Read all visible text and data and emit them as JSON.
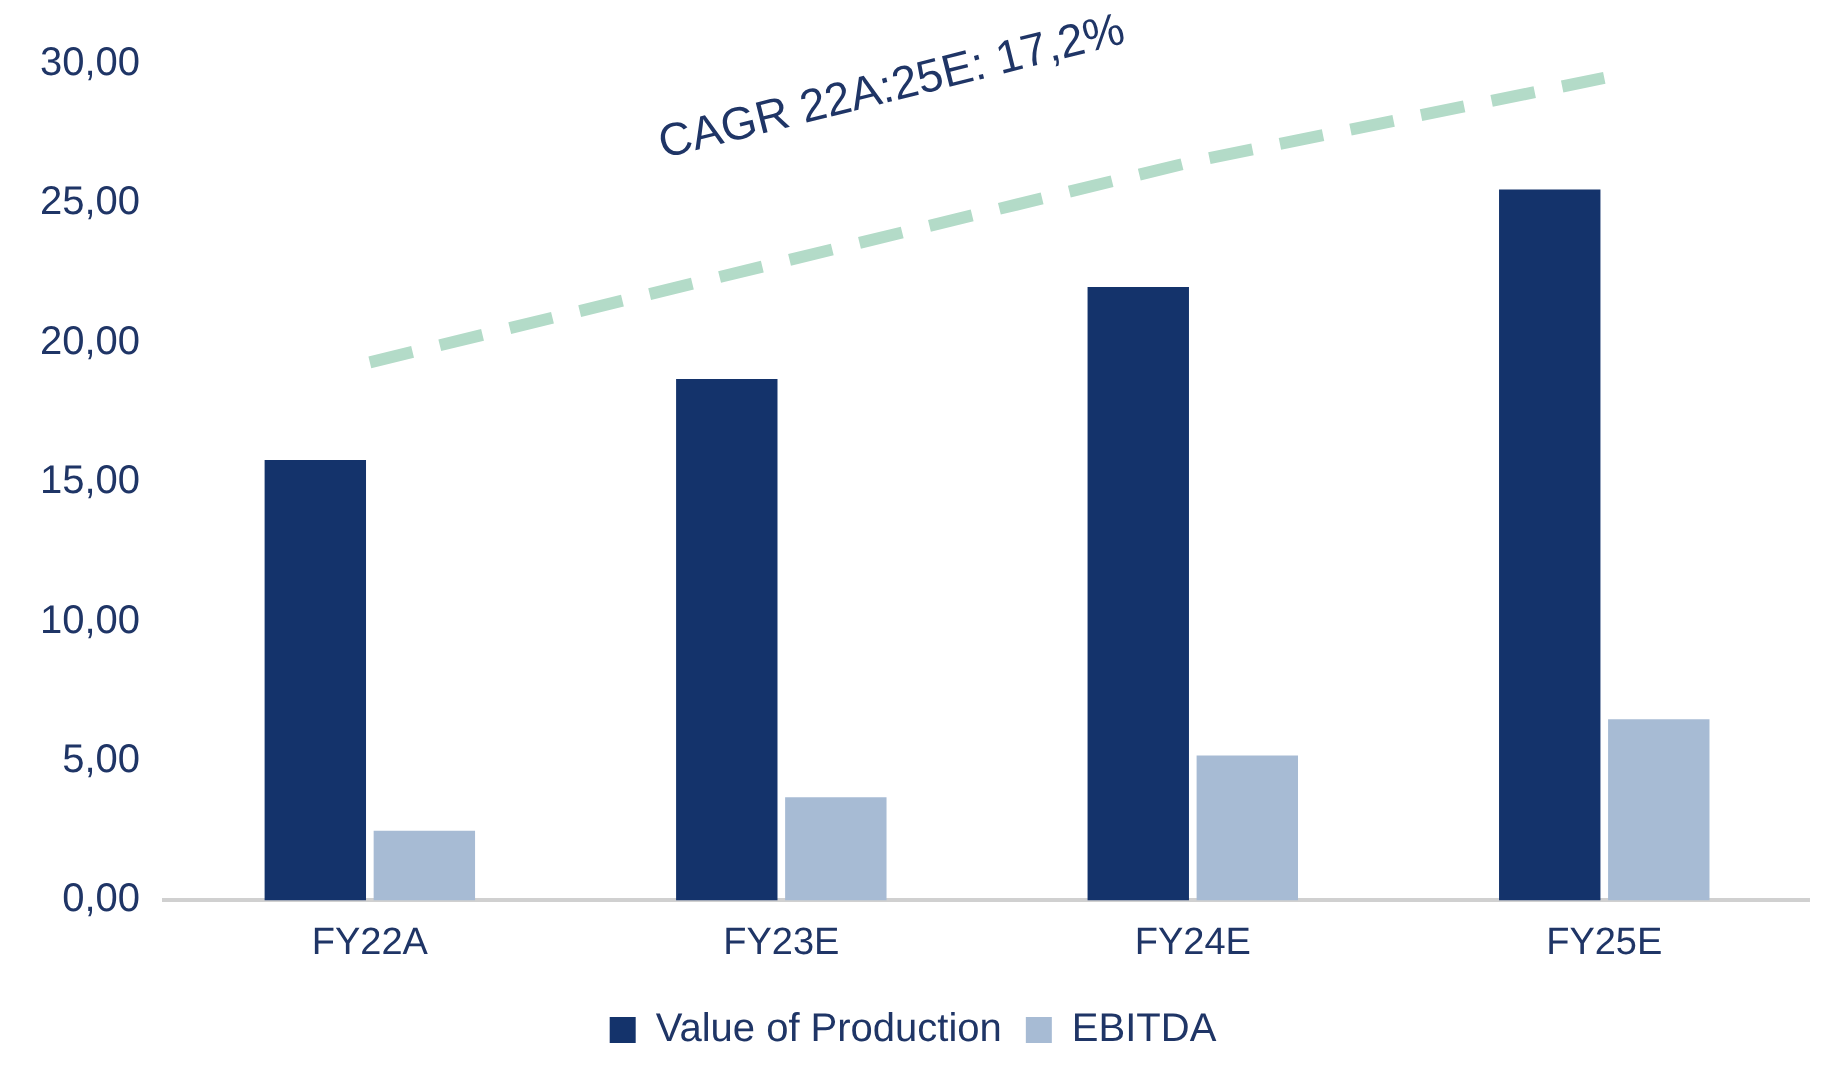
{
  "chart_data": {
    "type": "bar",
    "categories": [
      "FY22A",
      "FY23E",
      "FY24E",
      "FY25E"
    ],
    "series": [
      {
        "name": "Value of Production",
        "color": "#14336b",
        "values": [
          15.8,
          18.7,
          22.0,
          25.5
        ]
      },
      {
        "name": "EBITDA",
        "color": "#a7bbd4",
        "values": [
          2.5,
          3.7,
          5.2,
          6.5
        ]
      },
      {
        "type": "line",
        "color": "#b3dbc8",
        "line_style": "dashed",
        "marker": "none",
        "values": [
          19.3,
          22.9,
          26.5,
          29.5
        ]
      }
    ],
    "ylim": [
      0,
      30
    ],
    "yticks": [
      {
        "value": 0,
        "label": "0,00"
      },
      {
        "value": 5,
        "label": "5,00"
      },
      {
        "value": 10,
        "label": "10,00"
      },
      {
        "value": 15,
        "label": "15,00"
      },
      {
        "value": 20,
        "label": "20,00"
      },
      {
        "value": 25,
        "label": "25,00"
      },
      {
        "value": 30,
        "label": "30,00"
      }
    ],
    "annotations": [
      "CAGR 22A:25E: 17,2%"
    ],
    "grid": false,
    "legend": "bottom"
  }
}
